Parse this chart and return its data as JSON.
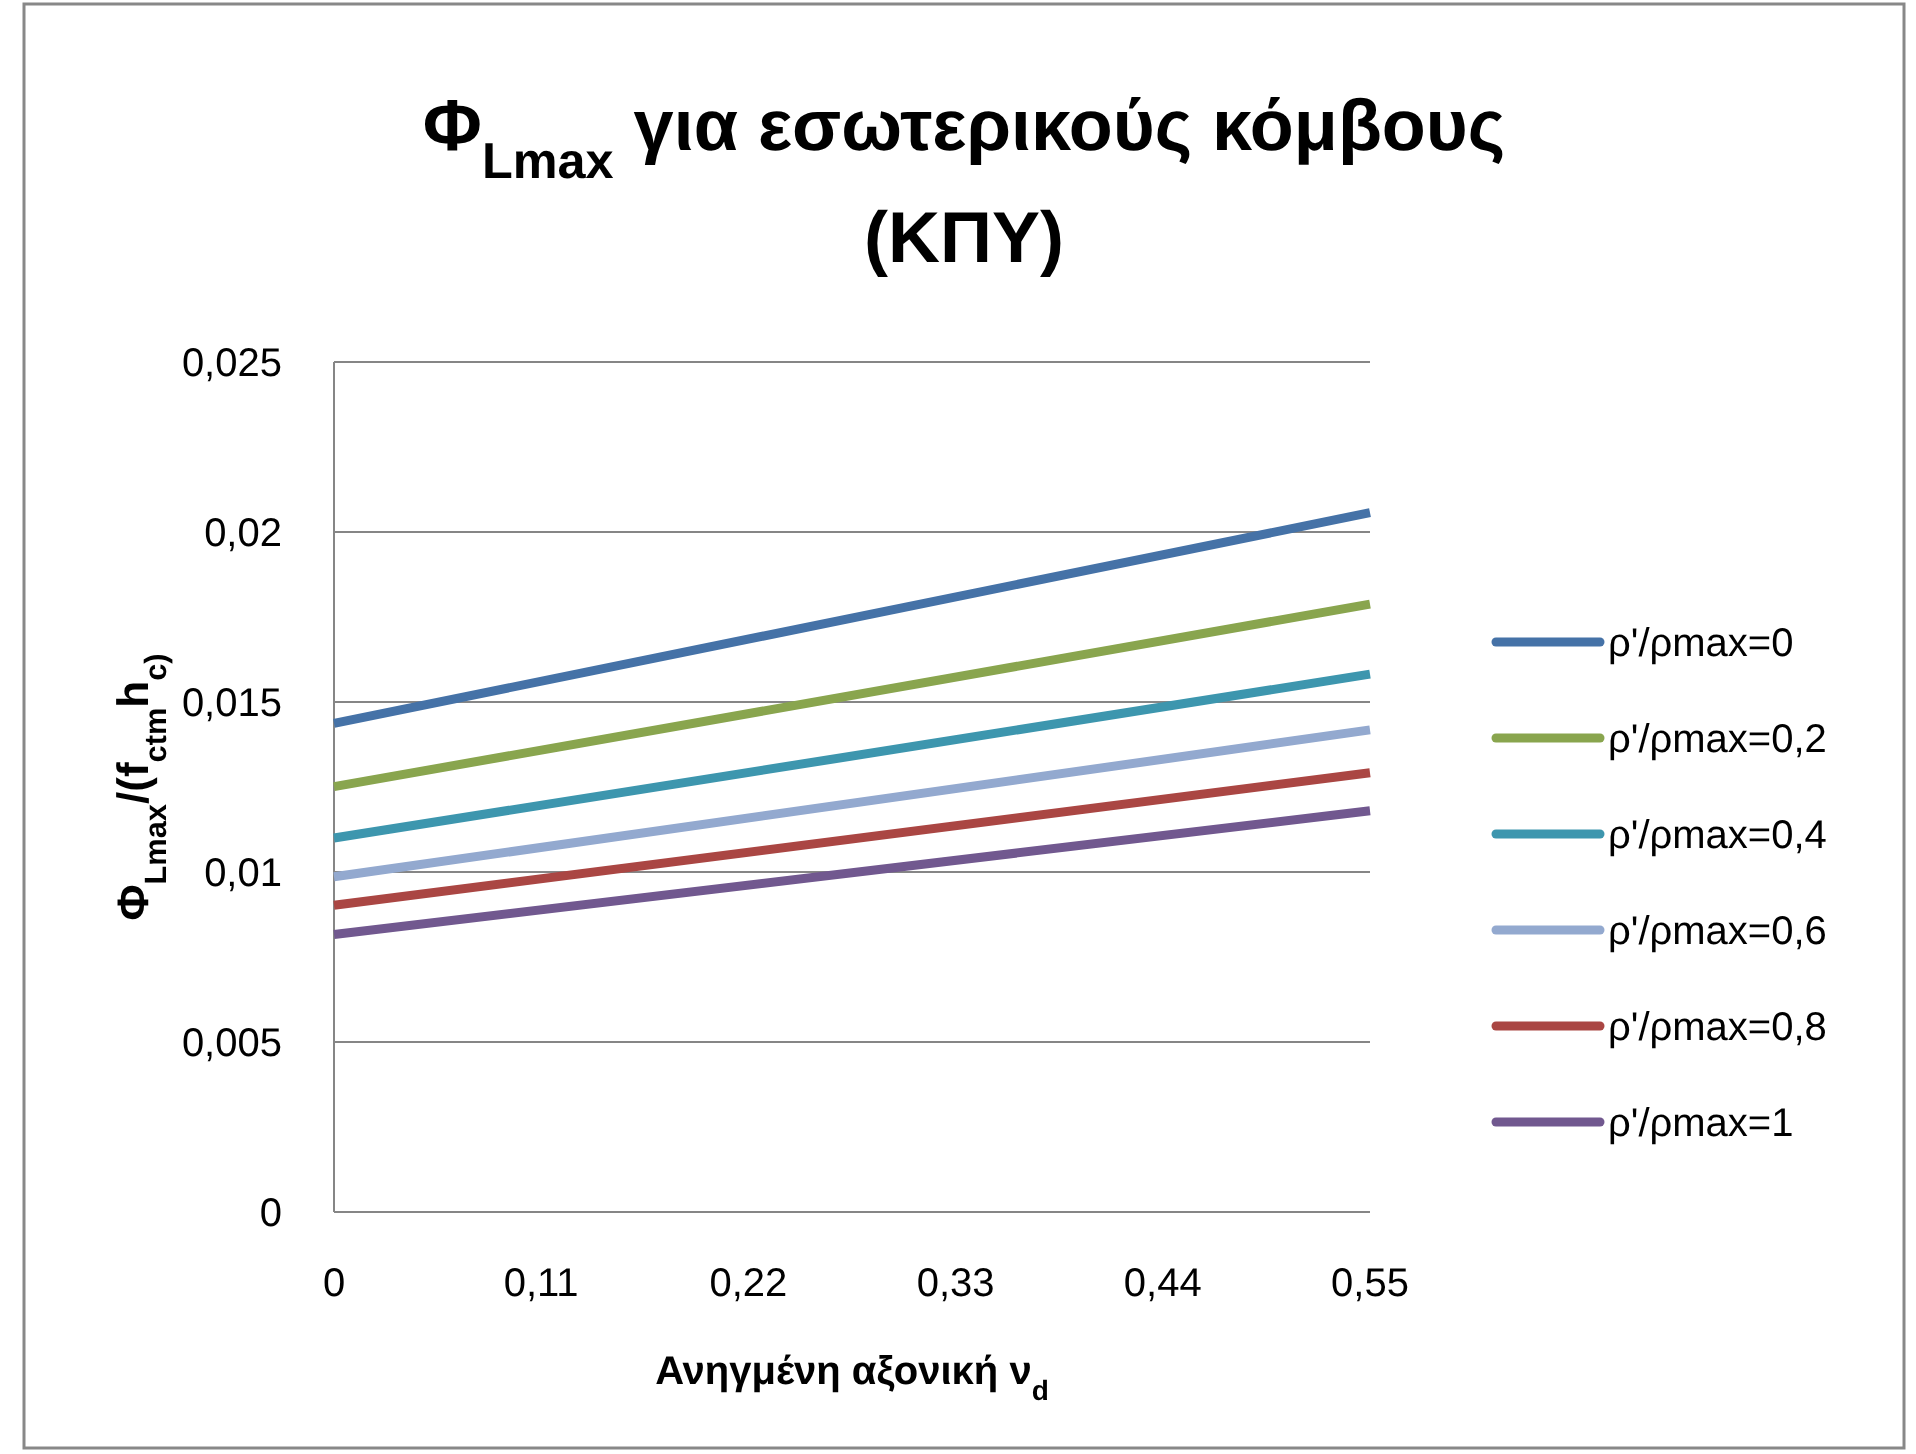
{
  "chart_data": {
    "type": "line",
    "title": "Φ$_{Lmax}$ για εσωτερικούς κόμβους\n(ΚΠΥ)",
    "xlabel": "Ανηγμένη αξονική ν$_{d}$",
    "ylabel": "Φ$_{Lmax}$/(f$_{ctm}$h$_{c)}$",
    "x": [
      0,
      0.55
    ],
    "series": [
      {
        "name": "ρ'/ρmax=0",
        "color": "#4572a7",
        "values": [
          0.01437,
          0.02057
        ]
      },
      {
        "name": "ρ'/ρmax=0,2",
        "color": "#89a54e",
        "values": [
          0.01251,
          0.01788
        ]
      },
      {
        "name": "ρ'/ρmax=0,4",
        "color": "#3d96ae",
        "values": [
          0.011,
          0.01582
        ]
      },
      {
        "name": "ρ'/ρmax=0,6",
        "color": "#93a9cf",
        "values": [
          0.00986,
          0.01418
        ]
      },
      {
        "name": "ρ'/ρmax=0,8",
        "color": "#aa4643",
        "values": [
          0.00902,
          0.01292
        ]
      },
      {
        "name": "ρ'/ρmax=1",
        "color": "#71588f",
        "values": [
          0.00816,
          0.0118
        ]
      }
    ],
    "xlim": [
      0,
      0.55
    ],
    "xticks": [
      0,
      {
        "value": 0.11,
        "label": "0,11"
      },
      {
        "value": 0.22,
        "label": "0,22"
      },
      {
        "value": 0.33,
        "label": "0,33"
      },
      {
        "value": 0.44,
        "label": "0,44"
      },
      {
        "value": 0.55,
        "label": "0,55"
      }
    ],
    "ylim": [
      0,
      0.025
    ],
    "yticks": [
      0,
      {
        "value": 0.005,
        "label": "0,005"
      },
      {
        "value": 0.01,
        "label": "0,01"
      },
      {
        "value": 0.015,
        "label": "0,015"
      },
      {
        "value": 0.02,
        "label": "0,02"
      },
      {
        "value": 0.025,
        "label": "0,025"
      }
    ],
    "grid": "y",
    "legend": "right",
    "line_style": "solid"
  }
}
